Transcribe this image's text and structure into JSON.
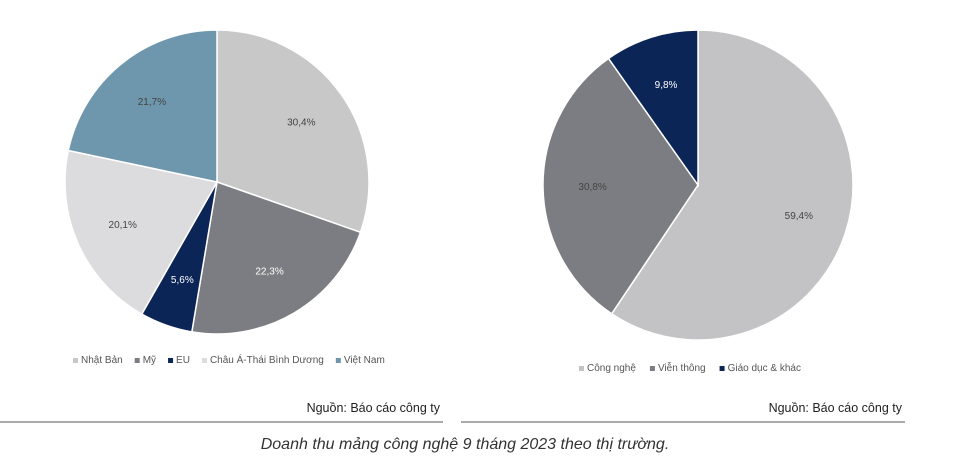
{
  "chart_data": [
    {
      "type": "pie",
      "categories": [
        "Nhật Bản",
        "Mỹ",
        "EU",
        "Châu Á-Thái Bình Dương",
        "Việt Nam"
      ],
      "values": [
        30.4,
        22.3,
        5.6,
        20.1,
        21.7
      ],
      "value_labels": [
        "30,4%",
        "22,3%",
        "5,6%",
        "20,1%",
        "21,7%"
      ],
      "colors": [
        "#c8c8c8",
        "#7c7d82",
        "#0b2556",
        "#dcdcde",
        "#6e97ad"
      ],
      "label_colors": [
        "#444444",
        "#ffffff",
        "#ffffff",
        "#444444",
        "#444444"
      ],
      "legend_position": "bottom",
      "source": "Nguồn: Báo cáo công ty"
    },
    {
      "type": "pie",
      "categories": [
        "Công nghệ",
        "Viễn thông",
        "Giáo dục & khác"
      ],
      "values": [
        59.4,
        30.8,
        9.8
      ],
      "value_labels": [
        "59,4%",
        "30,8%",
        "9,8%"
      ],
      "colors": [
        "#c3c3c5",
        "#7c7d82",
        "#0b2556"
      ],
      "label_colors": [
        "#444444",
        "#444444",
        "#ffffff"
      ],
      "legend_position": "bottom",
      "source": "Nguồn: Báo cáo công ty"
    }
  ],
  "caption": "Doanh thu mảng công nghệ 9 tháng 2023 theo thị trường."
}
